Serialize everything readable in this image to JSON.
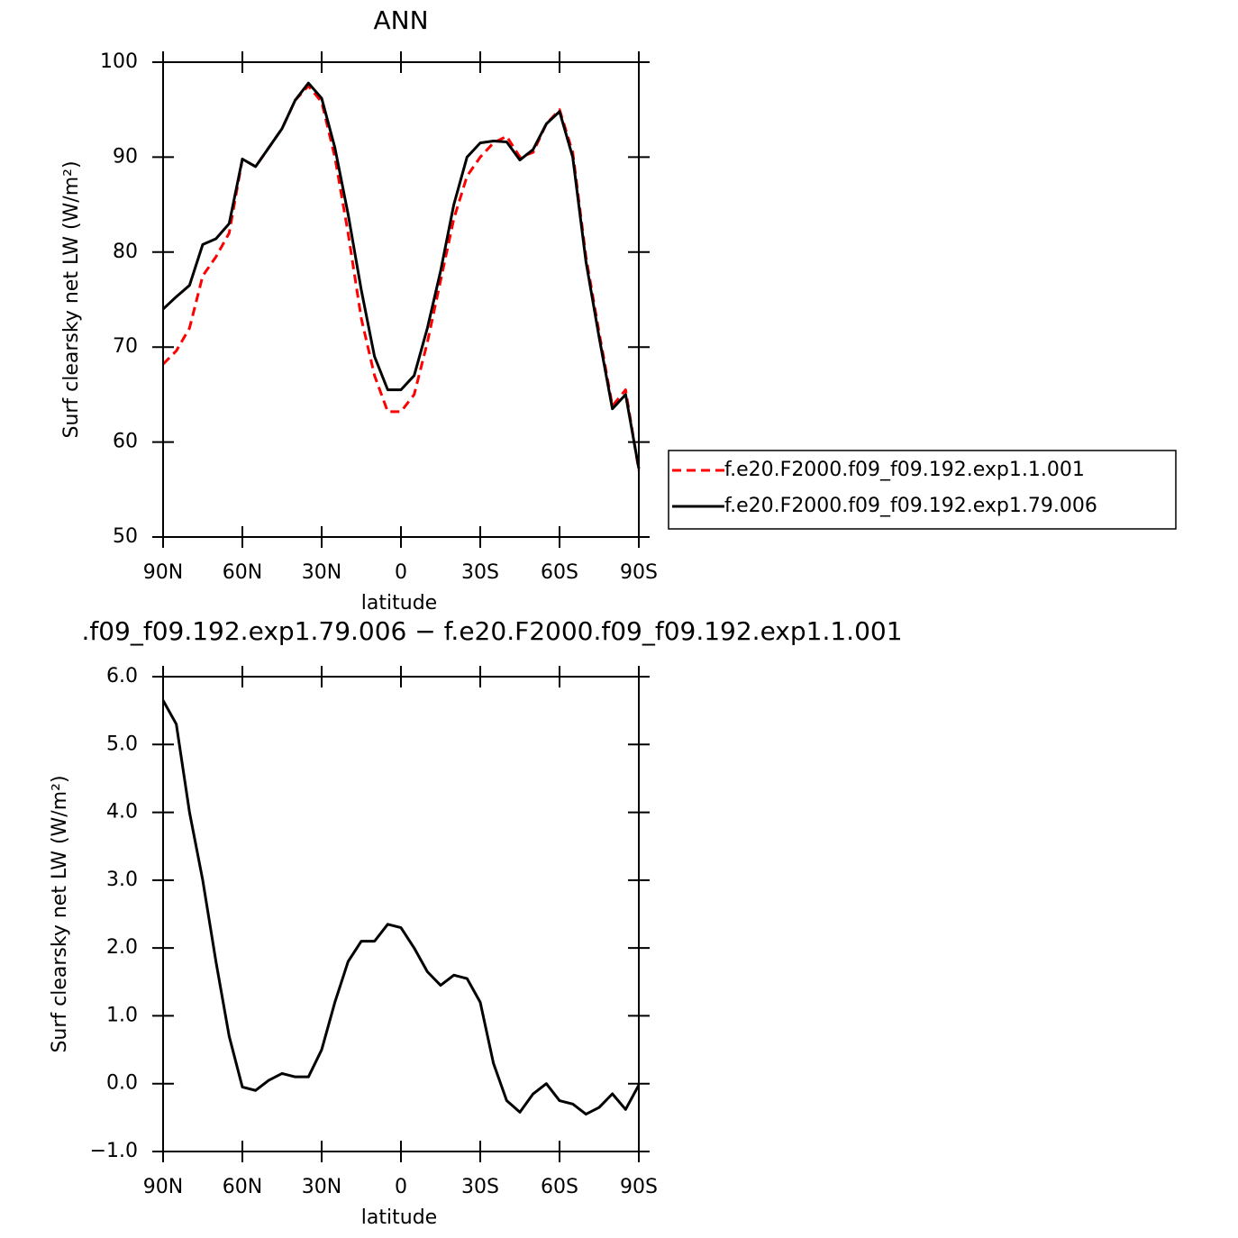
{
  "chart_data": [
    {
      "type": "line",
      "title": "ANN",
      "xlabel": "latitude",
      "ylabel": "Surf clearsky net LW (W/m²)",
      "x": [
        90,
        85,
        80,
        75,
        70,
        65,
        60,
        55,
        50,
        45,
        40,
        35,
        30,
        25,
        20,
        15,
        10,
        5,
        0,
        -5,
        -10,
        -15,
        -20,
        -25,
        -30,
        -35,
        -40,
        -45,
        -50,
        -55,
        -60,
        -65,
        -70,
        -75,
        -80,
        -85,
        -90
      ],
      "xlim": [
        90,
        -90
      ],
      "xticks": [
        {
          "value": 90,
          "label": "90N"
        },
        {
          "value": 60,
          "label": "60N"
        },
        {
          "value": 30,
          "label": "30N"
        },
        0,
        {
          "value": -30,
          "label": "30S"
        },
        {
          "value": -60,
          "label": "60S"
        },
        {
          "value": -90,
          "label": "90S"
        }
      ],
      "ylim": [
        50,
        100
      ],
      "yticks": [
        50,
        60,
        70,
        80,
        90,
        100
      ],
      "series": [
        {
          "name": "f.e20.F2000.f09_f09.192.exp1.1.001",
          "color": "#ff0000",
          "line_style": "dashed",
          "values": [
            68.2,
            69.6,
            72,
            77.5,
            79.5,
            82,
            89.8,
            89,
            91,
            93,
            96,
            97.5,
            95.8,
            90,
            82,
            73,
            67,
            63.2,
            63.2,
            65,
            70.5,
            77,
            83.5,
            88,
            90,
            91.5,
            92.2,
            90,
            90.5,
            93.5,
            95,
            90.5,
            79.5,
            71.5,
            63.8,
            65.5,
            57
          ]
        },
        {
          "name": "f.e20.F2000.f09_f09.192.exp1.79.006",
          "color": "#000000",
          "line_style": "solid",
          "values": [
            74,
            75.3,
            76.5,
            80.8,
            81.4,
            83,
            89.8,
            89,
            91,
            93,
            96,
            97.8,
            96.2,
            91,
            84,
            76,
            69,
            65.5,
            65.5,
            67,
            72,
            78,
            85,
            90,
            91.5,
            91.7,
            91.6,
            89.7,
            90.8,
            93.5,
            94.8,
            90,
            79,
            71,
            63.5,
            65,
            57.2
          ]
        }
      ]
    },
    {
      "type": "line",
      "title": ".f09_f09.192.exp1.79.006 − f.e20.F2000.f09_f09.192.exp1.1.001",
      "xlabel": "latitude",
      "ylabel": "Surf clearsky net LW (W/m²)",
      "x": [
        90,
        85,
        80,
        75,
        70,
        65,
        60,
        55,
        50,
        45,
        40,
        35,
        30,
        25,
        20,
        15,
        10,
        5,
        0,
        -5,
        -10,
        -15,
        -20,
        -25,
        -30,
        -35,
        -40,
        -45,
        -50,
        -55,
        -60,
        -65,
        -70,
        -75,
        -80,
        -85,
        -90
      ],
      "xlim": [
        90,
        -90
      ],
      "xticks": [
        {
          "value": 90,
          "label": "90N"
        },
        {
          "value": 60,
          "label": "60N"
        },
        {
          "value": 30,
          "label": "30N"
        },
        0,
        {
          "value": -30,
          "label": "30S"
        },
        {
          "value": -60,
          "label": "60S"
        },
        {
          "value": -90,
          "label": "90S"
        }
      ],
      "ylim": [
        -1,
        6
      ],
      "yticks": [
        {
          "value": -1,
          "label": "−1.0"
        },
        {
          "value": 0,
          "label": "0.0"
        },
        {
          "value": 1,
          "label": "1.0"
        },
        {
          "value": 2,
          "label": "2.0"
        },
        {
          "value": 3,
          "label": "3.0"
        },
        {
          "value": 4,
          "label": "4.0"
        },
        {
          "value": 5,
          "label": "5.0"
        },
        {
          "value": 6,
          "label": "6.0"
        }
      ],
      "series": [
        {
          "color": "#000000",
          "line_style": "solid",
          "values": [
            5.65,
            5.3,
            4.0,
            3.0,
            1.8,
            0.7,
            -0.05,
            -0.1,
            0.05,
            0.15,
            0.1,
            0.1,
            0.5,
            1.2,
            1.8,
            2.1,
            2.1,
            2.35,
            2.3,
            2.0,
            1.65,
            1.45,
            1.6,
            1.55,
            1.2,
            0.3,
            -0.25,
            -0.42,
            -0.15,
            0.0,
            -0.25,
            -0.3,
            -0.45,
            -0.35,
            -0.15,
            -0.38,
            -0.02
          ]
        }
      ]
    }
  ]
}
